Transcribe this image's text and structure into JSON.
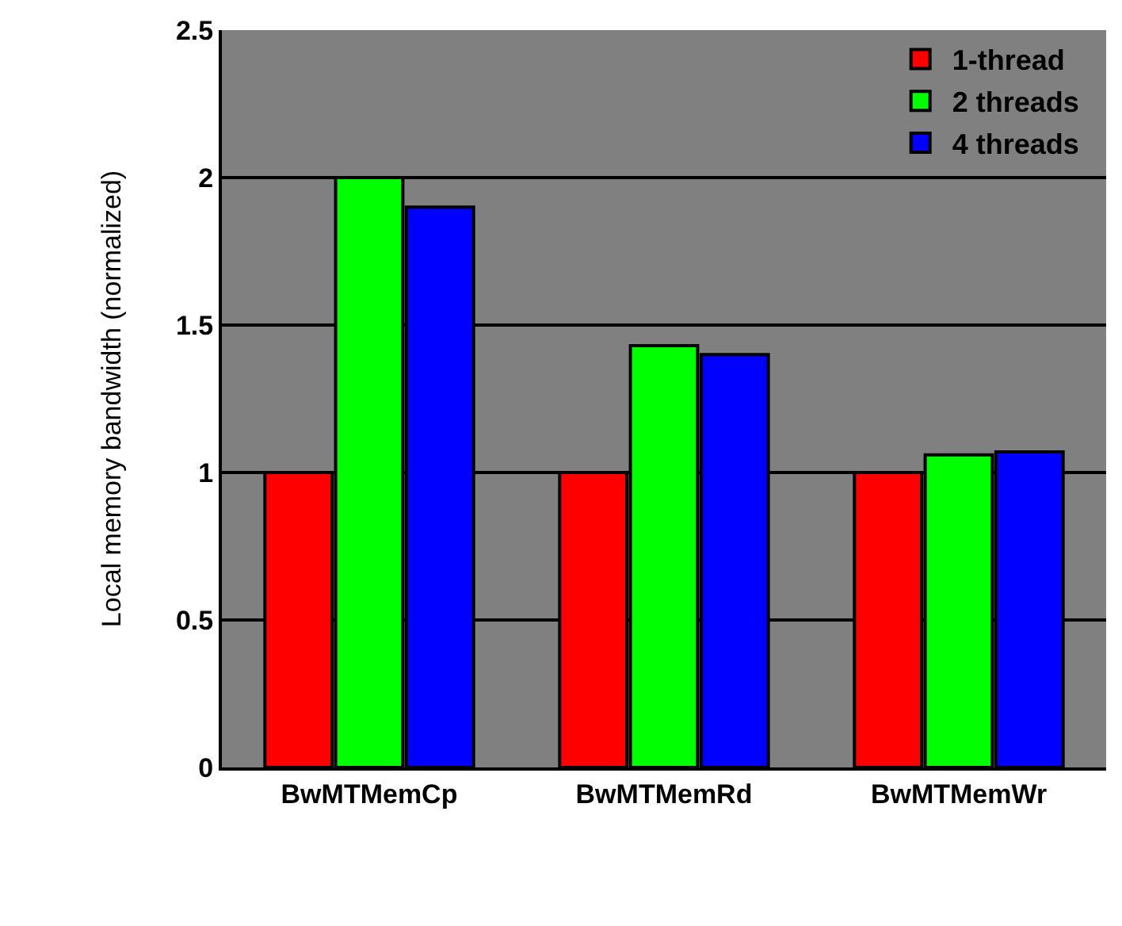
{
  "chart_data": {
    "type": "bar",
    "ylabel": "Local memory bandwidth (normalized)",
    "categories": [
      "BwMTMemCp",
      "BwMTMemRd",
      "BwMTMemWr"
    ],
    "series": [
      {
        "name": "1-thread",
        "color": "#ff0000",
        "values": [
          1,
          1,
          1
        ]
      },
      {
        "name": "2 threads",
        "color": "#00ff00",
        "values": [
          2.0,
          1.43,
          1.06
        ]
      },
      {
        "name": "4 threads",
        "color": "#0000ff",
        "values": [
          1.9,
          1.4,
          1.07
        ]
      }
    ],
    "ylim": [
      0,
      2.5
    ],
    "yticks": [
      0,
      0.5,
      1,
      1.5,
      2,
      2.5
    ],
    "grid": "y",
    "legend": "top right"
  }
}
